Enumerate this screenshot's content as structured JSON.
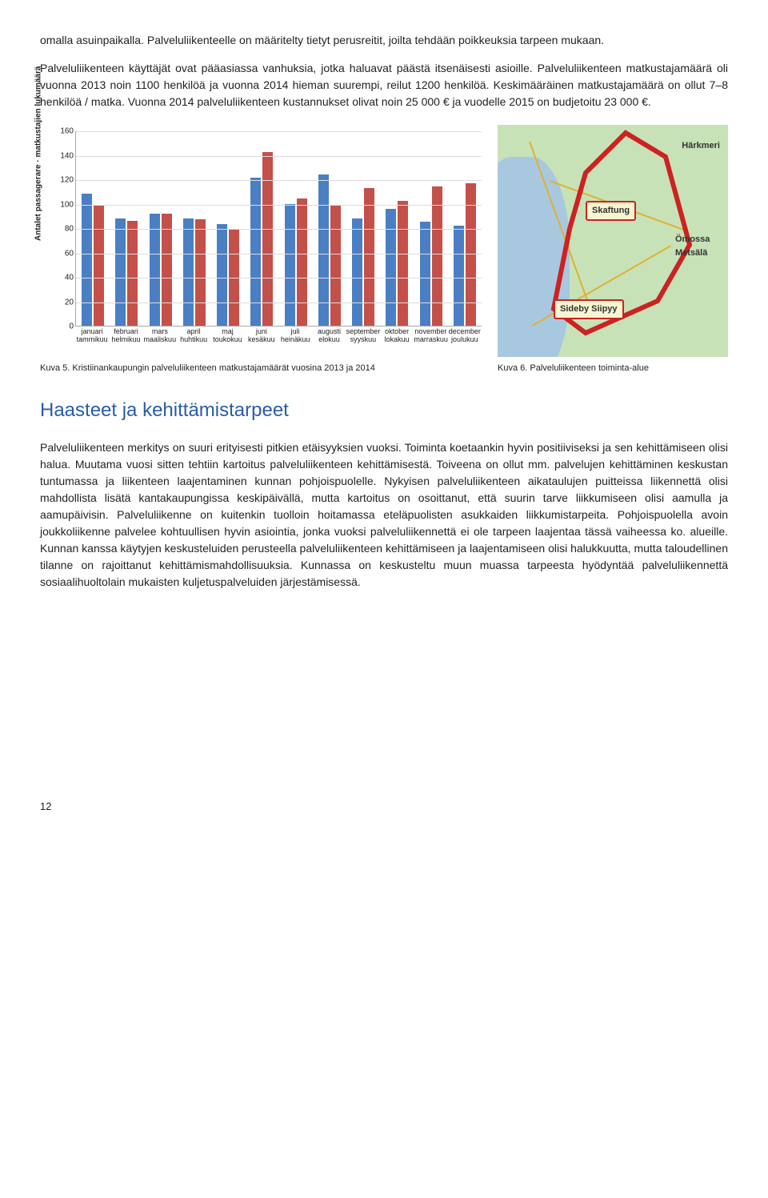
{
  "para1": "omalla asuinpaikalla. Palveluliikenteelle on määritelty tietyt perusreitit, joilta tehdään poikkeuksia tarpeen mukaan.",
  "para2": "Palveluliikenteen käyttäjät ovat pääasiassa vanhuksia, jotka haluavat päästä itsenäisesti asioille. Palveluliikenteen matkustajamäärä oli vuonna 2013 noin 1100 henkilöä ja vuonna 2014 hieman suurempi, reilut 1200 henkilöä. Keskimääräinen matkustajamäärä on ollut 7–8 henkilöä / matka. Vuonna 2014 palveluliikenteen kustannukset olivat noin 25 000 € ja vuodelle 2015 on budjetoitu 23 000 €.",
  "chart": {
    "ylabel": "Antalet passagerare · matkustajien lukumäärä",
    "ymax": 160,
    "ytick_step": 20,
    "colors": {
      "series_a": "#4a7fc4",
      "series_b": "#c4504a"
    },
    "months": [
      {
        "a": 108,
        "b": 99,
        "top": "januari",
        "bot": "tammikuu"
      },
      {
        "a": 88,
        "b": 86,
        "top": "februari",
        "bot": "helmikuu"
      },
      {
        "a": 92,
        "b": 92,
        "top": "mars",
        "bot": "maaliskuu"
      },
      {
        "a": 88,
        "b": 87,
        "top": "april",
        "bot": "huhtikuu"
      },
      {
        "a": 83,
        "b": 79,
        "top": "maj",
        "bot": "toukokuu"
      },
      {
        "a": 121,
        "b": 142,
        "top": "juni",
        "bot": "kesäkuu"
      },
      {
        "a": 100,
        "b": 104,
        "top": "juli",
        "bot": "heinäkuu"
      },
      {
        "a": 124,
        "b": 99,
        "top": "augusti",
        "bot": "elokuu"
      },
      {
        "a": 88,
        "b": 113,
        "top": "september",
        "bot": "syyskuu"
      },
      {
        "a": 96,
        "b": 102,
        "top": "oktober",
        "bot": "lokakuu"
      },
      {
        "a": 85,
        "b": 114,
        "top": "november",
        "bot": "marraskuu"
      },
      {
        "a": 82,
        "b": 117,
        "top": "december",
        "bot": "joulukuu"
      }
    ]
  },
  "map_labels": {
    "harkmeri": "Härkmeri",
    "skaftung": "Skaftung",
    "omossa": "Ömossa Metsälä",
    "sideby": "Sideby Siipyy"
  },
  "caption_left": "Kuva 5. Kristiinankaupungin palveluliikenteen matkustajamäärät vuosina 2013 ja 2014",
  "caption_right": "Kuva 6. Palveluliikenteen toiminta-alue",
  "heading": "Haasteet ja kehittämistarpeet",
  "para3": "Palveluliikenteen merkitys on suuri erityisesti pitkien etäisyyksien vuoksi. Toiminta koetaankin hyvin positiiviseksi ja sen kehittämiseen olisi halua. Muutama vuosi sitten tehtiin kartoitus palveluliikenteen kehittämisestä. Toiveena on ollut mm. palvelujen kehittäminen keskustan tuntumassa ja liikenteen laajentaminen kunnan pohjoispuolelle. Nykyisen palveluliikenteen aikataulujen puitteissa liikennettä olisi mahdollista lisätä kantakaupungissa keskipäivällä, mutta kartoitus on osoittanut, että suurin tarve liikkumiseen olisi aamulla ja aamupäivisin. Palveluliikenne on kuitenkin tuolloin hoitamassa eteläpuolisten asukkaiden liikkumistarpeita. Pohjoispuolella avoin joukkoliikenne palvelee kohtuullisen hyvin asiointia, jonka vuoksi palveluliikennettä ei ole tarpeen laajentaa tässä vaiheessa ko. alueille. Kunnan kanssa käytyjen keskusteluiden perusteella palveluliikenteen kehittämiseen ja laajentamiseen olisi halukkuutta, mutta taloudellinen tilanne on rajoittanut kehittämismahdollisuuksia. Kunnassa on keskusteltu muun muassa tarpeesta hyödyntää palveluliikennettä sosiaalihuoltolain mukaisten kuljetuspalveluiden järjestämisessä.",
  "page_num": "12"
}
